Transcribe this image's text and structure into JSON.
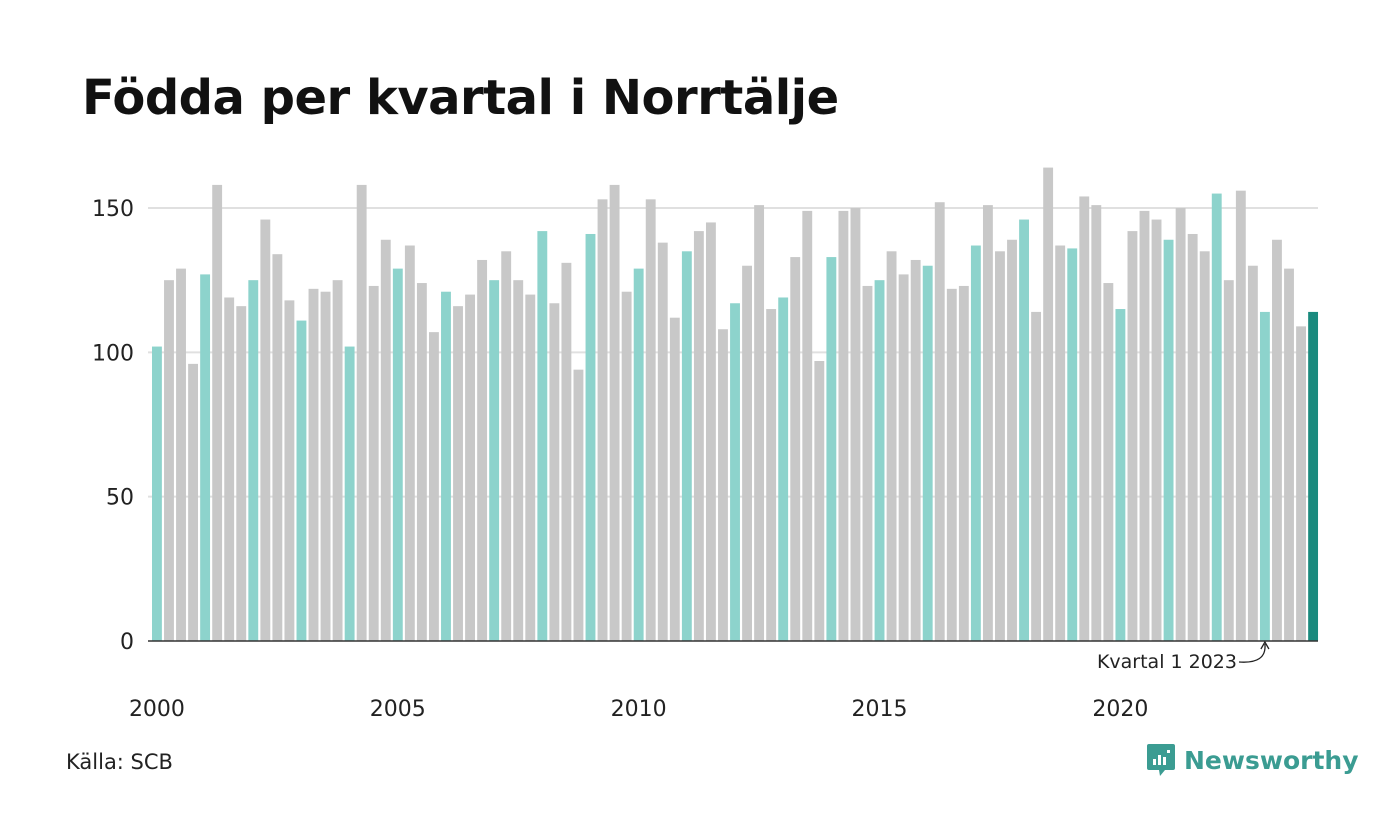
{
  "title": "Födda per kvartal i Norrtälje",
  "source": "Källa: SCB",
  "brand": "Newsworthy",
  "chart_data": {
    "type": "bar",
    "title": "Födda per kvartal i Norrtälje",
    "xlabel": "",
    "ylabel": "",
    "ylim": [
      0,
      165
    ],
    "yticks": [
      0,
      50,
      100,
      150
    ],
    "xticks": [
      {
        "label": "2000",
        "year": 2000
      },
      {
        "label": "2005",
        "year": 2005
      },
      {
        "label": "2010",
        "year": 2010
      },
      {
        "label": "2015",
        "year": 2015
      },
      {
        "label": "2020",
        "year": 2020
      }
    ],
    "grid": true,
    "start_year": 2000,
    "start_quarter": 1,
    "values": [
      102,
      125,
      129,
      96,
      127,
      158,
      119,
      116,
      125,
      146,
      134,
      118,
      111,
      122,
      121,
      125,
      102,
      158,
      123,
      139,
      129,
      137,
      124,
      107,
      121,
      116,
      120,
      132,
      125,
      135,
      125,
      120,
      142,
      117,
      131,
      94,
      141,
      153,
      158,
      121,
      129,
      153,
      138,
      112,
      135,
      142,
      145,
      108,
      117,
      130,
      151,
      115,
      119,
      133,
      149,
      97,
      133,
      149,
      150,
      123,
      125,
      135,
      127,
      132,
      130,
      152,
      122,
      123,
      137,
      151,
      135,
      139,
      146,
      114,
      164,
      137,
      136,
      154,
      151,
      124,
      115,
      142,
      149,
      146,
      139,
      150,
      141,
      135,
      155,
      125,
      156,
      130,
      114,
      139,
      129,
      109,
      114
    ],
    "colors": {
      "highlight_q1": "#8dd3cc",
      "other": "#c8c8c8",
      "latest": "#1a8a7e",
      "grid": "#e0e0e0",
      "axis": "#333333"
    },
    "annotation": {
      "text": "Kvartal 1 2023",
      "target_index": 92
    }
  }
}
